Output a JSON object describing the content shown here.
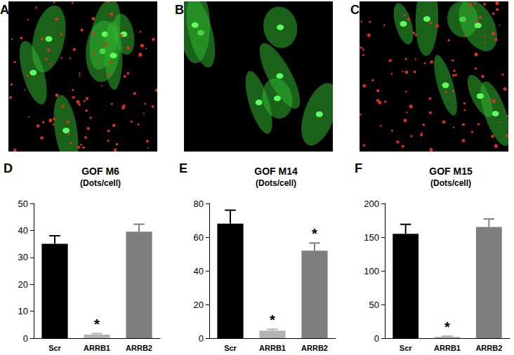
{
  "panels": [
    {
      "label": "A"
    },
    {
      "label": "B"
    },
    {
      "label": "C"
    }
  ],
  "chart_data": [
    {
      "type": "bar",
      "panel_label": "D",
      "title": "GOF M6",
      "subtitle": "(Dots/cell)",
      "categories": [
        "Scr",
        "ARRB1",
        "ARRB2"
      ],
      "values": [
        35,
        1.3,
        39.5
      ],
      "errors": [
        3,
        0.4,
        2.8
      ],
      "colors": [
        "#000000",
        "#b3b3b3",
        "#7f7f7f"
      ],
      "ylim": [
        0,
        50
      ],
      "yticks": [
        0,
        10,
        20,
        30,
        40,
        50
      ],
      "grid": false,
      "annotations": [
        {
          "category": "ARRB1",
          "text": "*"
        }
      ]
    },
    {
      "type": "bar",
      "panel_label": "E",
      "title": "GOF M14",
      "subtitle": "(Dots/cell)",
      "categories": [
        "Scr",
        "ARRB1",
        "ARRB2"
      ],
      "values": [
        68,
        4.5,
        52
      ],
      "errors": [
        8,
        0.8,
        4.5
      ],
      "colors": [
        "#000000",
        "#b3b3b3",
        "#7f7f7f"
      ],
      "ylim": [
        0,
        80
      ],
      "yticks": [
        0,
        20,
        40,
        60,
        80
      ],
      "grid": false,
      "annotations": [
        {
          "category": "ARRB1",
          "text": "*"
        },
        {
          "category": "ARRB2",
          "text": "*"
        }
      ]
    },
    {
      "type": "bar",
      "panel_label": "F",
      "title": "GOF M15",
      "subtitle": "(Dots/cell)",
      "categories": [
        "Scr",
        "ARRB1",
        "ARRB2"
      ],
      "values": [
        155,
        2,
        165
      ],
      "errors": [
        14,
        1,
        12
      ],
      "colors": [
        "#000000",
        "#b3b3b3",
        "#7f7f7f"
      ],
      "ylim": [
        0,
        200
      ],
      "yticks": [
        0,
        50,
        100,
        150,
        200
      ],
      "grid": false,
      "annotations": [
        {
          "category": "ARRB1",
          "text": "*"
        }
      ]
    }
  ]
}
